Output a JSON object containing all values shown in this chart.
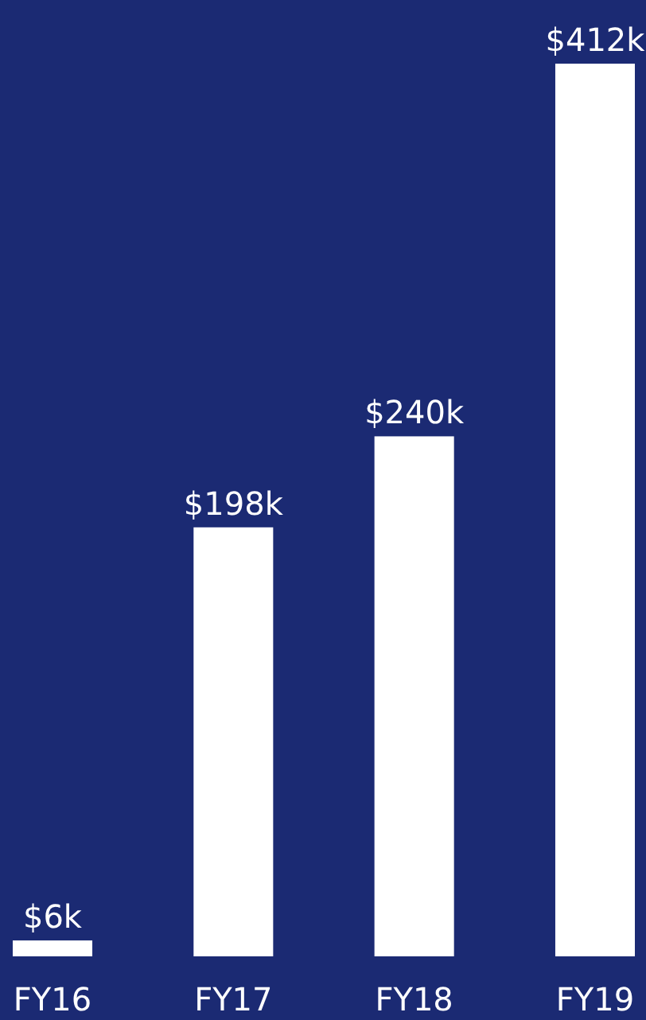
{
  "chart_data": {
    "type": "bar",
    "categories": [
      "FY16",
      "FY17",
      "FY18",
      "FY19"
    ],
    "values": [
      6,
      198,
      240,
      412
    ],
    "value_labels": [
      "$6k",
      "$198k",
      "$240k",
      "$412k"
    ],
    "color": "#ffffff"
  }
}
